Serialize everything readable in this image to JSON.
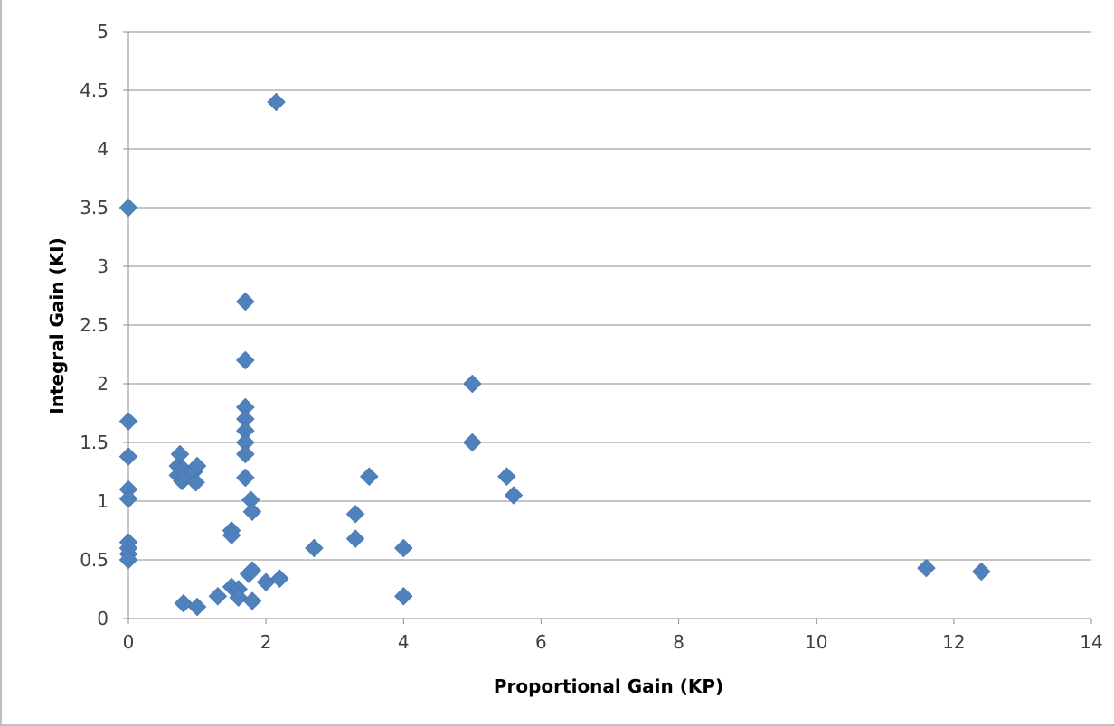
{
  "chart_data": {
    "type": "scatter",
    "xlabel": "Proportional Gain (KP)",
    "ylabel": "Integral Gain (KI)",
    "xlim": [
      0,
      14
    ],
    "ylim": [
      0,
      5
    ],
    "x_ticks": [
      "0",
      "2",
      "4",
      "6",
      "8",
      "10",
      "12",
      "14"
    ],
    "y_ticks": [
      "0",
      "0.5",
      "1",
      "1.5",
      "2",
      "2.5",
      "3",
      "3.5",
      "4",
      "4.5",
      "5"
    ],
    "grid": "horizontal",
    "legend": "none",
    "marker": "diamond",
    "marker_color": "#4f81bd",
    "series": [
      {
        "points": [
          [
            0,
            3.5
          ],
          [
            0,
            1.68
          ],
          [
            0,
            1.38
          ],
          [
            0,
            1.1
          ],
          [
            0,
            1.02
          ],
          [
            0,
            0.65
          ],
          [
            0,
            0.6
          ],
          [
            0,
            0.55
          ],
          [
            0,
            0.5
          ],
          [
            0.72,
            1.3
          ],
          [
            0.75,
            1.4
          ],
          [
            0.72,
            1.22
          ],
          [
            0.8,
            1.27
          ],
          [
            0.78,
            1.17
          ],
          [
            0.85,
            1.22
          ],
          [
            0.95,
            1.25
          ],
          [
            1.0,
            1.3
          ],
          [
            0.98,
            1.16
          ],
          [
            0.8,
            0.13
          ],
          [
            1.0,
            0.1
          ],
          [
            1.3,
            0.19
          ],
          [
            1.5,
            0.75
          ],
          [
            1.5,
            0.71
          ],
          [
            1.5,
            0.27
          ],
          [
            1.6,
            0.25
          ],
          [
            1.6,
            0.18
          ],
          [
            1.7,
            2.7
          ],
          [
            1.7,
            2.2
          ],
          [
            1.7,
            1.8
          ],
          [
            1.7,
            1.7
          ],
          [
            1.7,
            1.6
          ],
          [
            1.7,
            1.5
          ],
          [
            1.7,
            1.4
          ],
          [
            1.7,
            1.2
          ],
          [
            1.78,
            1.01
          ],
          [
            1.8,
            0.91
          ],
          [
            1.75,
            0.38
          ],
          [
            1.8,
            0.41
          ],
          [
            1.8,
            0.15
          ],
          [
            2.0,
            0.31
          ],
          [
            2.2,
            0.34
          ],
          [
            2.15,
            4.4
          ],
          [
            2.7,
            0.6
          ],
          [
            3.3,
            0.89
          ],
          [
            3.3,
            0.68
          ],
          [
            3.5,
            1.21
          ],
          [
            4.0,
            0.6
          ],
          [
            4.0,
            0.19
          ],
          [
            5.0,
            2.0
          ],
          [
            5.0,
            1.5
          ],
          [
            5.5,
            1.21
          ],
          [
            5.6,
            1.05
          ],
          [
            11.6,
            0.43
          ],
          [
            12.4,
            0.4
          ]
        ]
      }
    ]
  }
}
